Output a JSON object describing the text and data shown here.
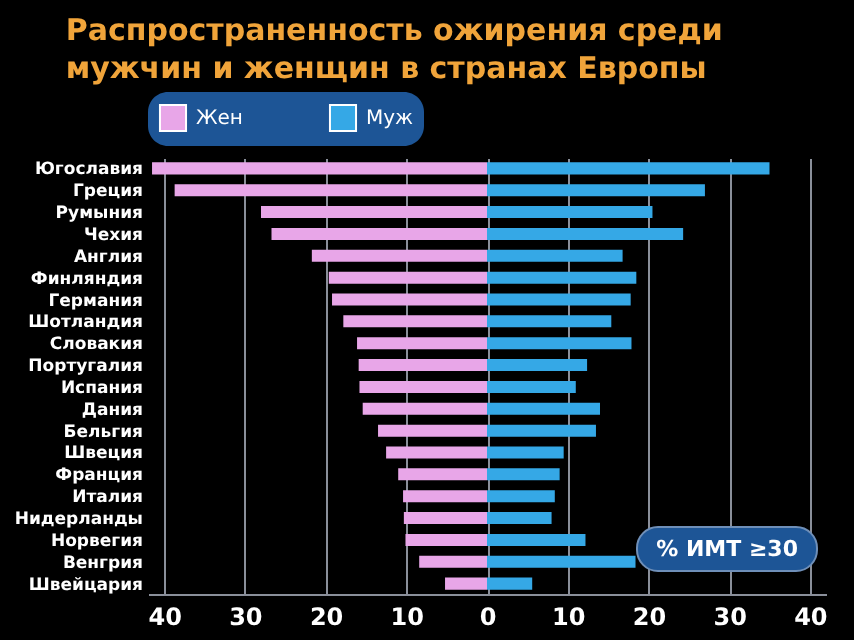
{
  "chart_data": {
    "type": "bar",
    "orientation": "horizontal",
    "stacked": true,
    "title": "Распространенность ожирения среди мужчин и женщин в странах Европы",
    "categories": [
      "Югославия",
      "Греция",
      "Румыния",
      "Чехия",
      "Англия",
      "Финляндия",
      "Германия",
      "Шотландия",
      "Словакия",
      "Португалия",
      "Испания",
      "Дания",
      "Бельгия",
      "Швеция",
      "Франция",
      "Италия",
      "Нидерланды",
      "Норвегия",
      "Венгрия",
      "Швейцария"
    ],
    "series": [
      {
        "name": "Жен",
        "color": "#e8a6e8",
        "values": [
          -41.5,
          -38.7,
          -28,
          -26.7,
          -21.7,
          -19.6,
          -19.2,
          -17.8,
          -16.1,
          -15.9,
          -15.8,
          -15.4,
          -13.5,
          -12.5,
          -11,
          -10.4,
          -10.3,
          -10.1,
          -8.4,
          -5.2
        ]
      },
      {
        "name": "Муж",
        "color": "#35a8e6",
        "values": [
          35,
          27,
          20.5,
          24.3,
          16.8,
          18.5,
          17.8,
          15.4,
          17.9,
          12.4,
          11,
          14,
          13.5,
          9.5,
          9,
          8.4,
          8,
          12.2,
          18.4,
          5.6
        ]
      }
    ],
    "xlim": [
      -42,
      42
    ],
    "xticks": [
      {
        "value": -40,
        "label": "40"
      },
      {
        "value": -30,
        "label": "30"
      },
      {
        "value": -20,
        "label": "20"
      },
      {
        "value": -10,
        "label": "10"
      },
      0,
      10,
      20,
      30,
      40
    ],
    "grid": "x",
    "legend": "top",
    "annotations": [
      "% ИМТ ≥30"
    ]
  }
}
